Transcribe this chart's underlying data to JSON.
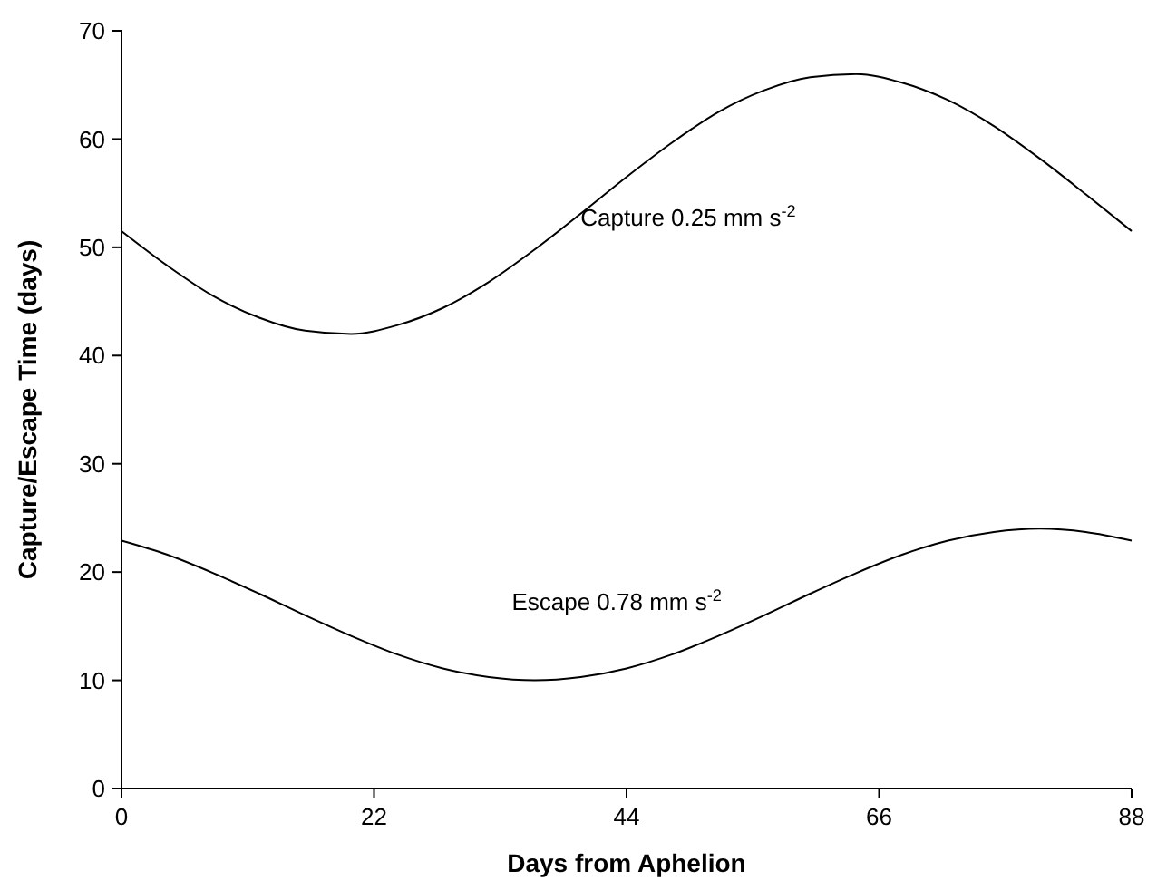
{
  "chart_data": {
    "type": "line",
    "xlabel": "Days from Aphelion",
    "ylabel": "Capture/Escape Time (days)",
    "x": [
      0,
      4,
      8,
      12,
      16,
      20,
      24,
      28,
      32,
      36,
      40,
      44,
      48,
      52,
      56,
      60,
      64,
      68,
      72,
      76,
      80,
      84,
      88
    ],
    "xlim": [
      0,
      88
    ],
    "xticks": [
      0,
      22,
      44,
      66,
      88
    ],
    "ylim": [
      0,
      70
    ],
    "yticks": [
      0,
      10,
      20,
      30,
      40,
      50,
      60,
      70
    ],
    "grid": false,
    "legend": false,
    "marker": "none",
    "line_style": "solid",
    "series": [
      {
        "name": "Capture 0.25 mm s$^{-2}$",
        "color": "#000000",
        "values": [
          51.5,
          48.3,
          45.5,
          43.5,
          42.3,
          42.0,
          42.8,
          44.4,
          46.8,
          49.8,
          53.1,
          56.5,
          59.7,
          62.5,
          64.5,
          65.7,
          66.0,
          65.2,
          63.6,
          61.2,
          58.2,
          54.9,
          51.5
        ]
      },
      {
        "name": "Escape 0.78 mm s$^{-2}$",
        "color": "#000000",
        "values": [
          22.9,
          21.6,
          19.9,
          18.0,
          16.0,
          14.1,
          12.4,
          11.1,
          10.3,
          10.0,
          10.3,
          11.1,
          12.4,
          14.1,
          16.0,
          18.0,
          19.9,
          21.6,
          22.9,
          23.7,
          24.0,
          23.7,
          22.9
        ]
      }
    ]
  }
}
